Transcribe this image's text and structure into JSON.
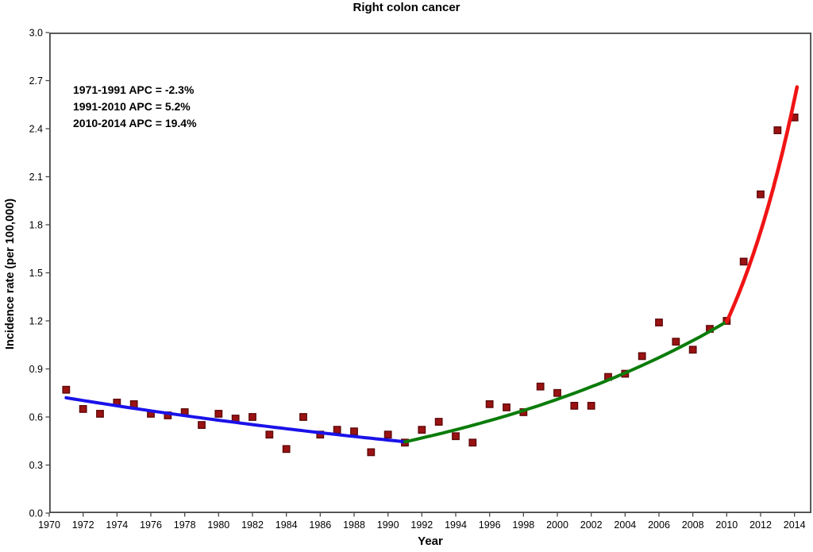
{
  "chart_data": {
    "type": "scatter",
    "title": "Right colon cancer",
    "xlabel": "Year",
    "ylabel": "Incidence rate (per 100,000)",
    "xlim": [
      1970,
      2015
    ],
    "ylim": [
      0,
      3
    ],
    "grid": false,
    "legend": "none",
    "annotations": [
      "1971-1991 APC = -2.3%",
      "1991-2010 APC = 5.2%",
      "2010-2014 APC = 19.4%"
    ],
    "x_ticks": [
      1970,
      1972,
      1974,
      1976,
      1978,
      1980,
      1982,
      1984,
      1986,
      1988,
      1990,
      1992,
      1994,
      1996,
      1998,
      2000,
      2002,
      2004,
      2006,
      2008,
      2010,
      2012,
      2014
    ],
    "y_ticks": [
      "0.0",
      "0.3",
      "0.6",
      "0.9",
      "1.2",
      "1.5",
      "1.8",
      "2.1",
      "2.4",
      "2.7",
      "3.0"
    ],
    "marker": {
      "shape": "square",
      "fill": "#9b1212",
      "stroke": "#5f0909",
      "size": 8.4
    },
    "x": [
      1971,
      1972,
      1973,
      1974,
      1975,
      1976,
      1977,
      1978,
      1979,
      1980,
      1981,
      1982,
      1983,
      1984,
      1985,
      1986,
      1987,
      1988,
      1989,
      1990,
      1991,
      1992,
      1993,
      1994,
      1995,
      1996,
      1997,
      1998,
      1999,
      2000,
      2001,
      2002,
      2003,
      2004,
      2005,
      2006,
      2007,
      2008,
      2009,
      2010,
      2011,
      2012,
      2013,
      2014
    ],
    "y": [
      0.77,
      0.65,
      0.62,
      0.69,
      0.68,
      0.62,
      0.61,
      0.63,
      0.55,
      0.62,
      0.59,
      0.6,
      0.49,
      0.4,
      0.6,
      0.49,
      0.52,
      0.51,
      0.38,
      0.49,
      0.44,
      0.52,
      0.57,
      0.48,
      0.44,
      0.68,
      0.66,
      0.63,
      0.79,
      0.75,
      0.67,
      0.67,
      0.85,
      0.87,
      0.98,
      1.19,
      1.07,
      1.02,
      1.15,
      1.2,
      1.57,
      1.99,
      2.39,
      2.47
    ],
    "trend_lines": [
      {
        "name": "segment-1971-1991",
        "apc": "-2.3%",
        "color": "#1a12e8",
        "width": 4,
        "x0": 1971,
        "y0": 0.72,
        "x1": 1991,
        "y1": 0.445
      },
      {
        "name": "segment-1991-2010",
        "apc": "5.2%",
        "color": "#0a7c0a",
        "width": 4,
        "x0": 1991,
        "y0": 0.445,
        "x1": 2010,
        "y1": 1.195
      },
      {
        "name": "segment-2010-2014",
        "apc": "19.4%",
        "color": "#f01414",
        "width": 4.6,
        "x0": 2010,
        "y0": 1.195,
        "x1": 2014.15,
        "y1": 2.66
      }
    ],
    "axis_color": "#474747"
  }
}
